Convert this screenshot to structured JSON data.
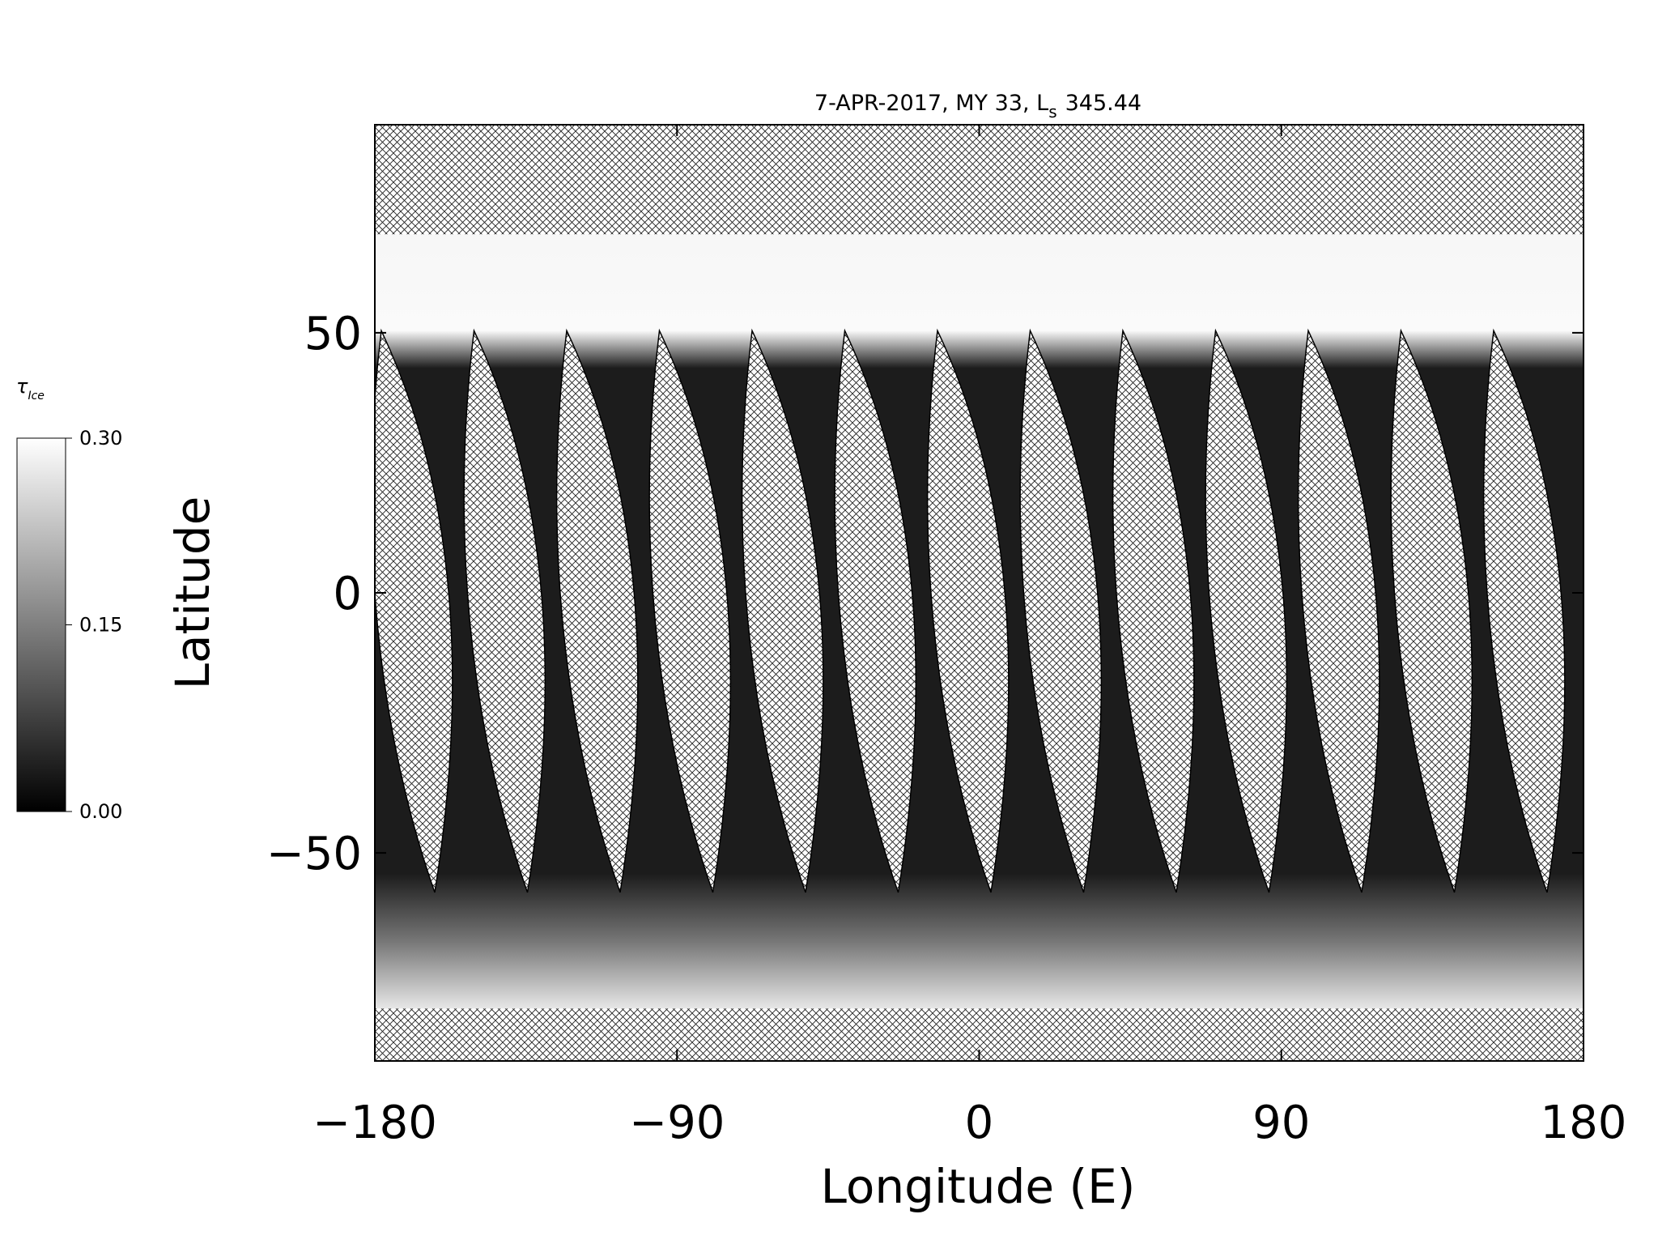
{
  "chart_data": {
    "type": "heatmap",
    "title": {
      "text": "7-APR-2017, MY 33,  L",
      "subscript": "s",
      "value": "345.44"
    },
    "xlabel": "Longitude (E)",
    "ylabel": "Latitude",
    "xlim": [
      -180,
      180
    ],
    "xticks": [
      {
        "value": -180,
        "label": "−180"
      },
      {
        "value": -90,
        "label": "−90"
      },
      0,
      90,
      180
    ],
    "ylim": [
      -90,
      90
    ],
    "yticks": [
      {
        "value": -50,
        "label": "−50"
      },
      0,
      50
    ],
    "colorbar": {
      "label": "τ",
      "label_subscript": "Ice",
      "lim": [
        0,
        0.3
      ],
      "ticks": [
        {
          "value": 0,
          "label": "0.00"
        },
        {
          "value": 0.15,
          "label": "0.15"
        },
        {
          "value": 0.3,
          "label": "0.30"
        }
      ]
    }
  }
}
